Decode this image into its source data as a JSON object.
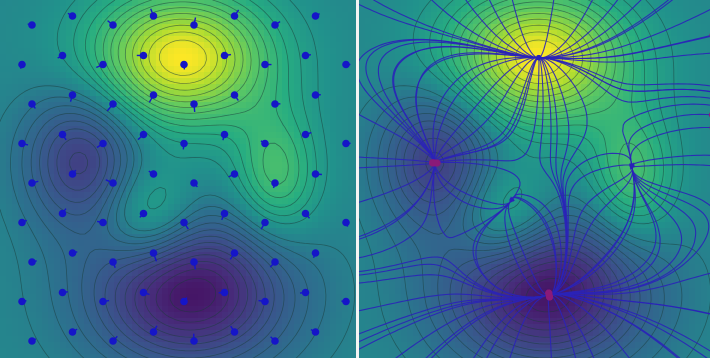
{
  "panels": [
    {
      "id": "left",
      "title": "",
      "view": "vector-field-samples"
    },
    {
      "id": "right",
      "title": "",
      "view": "streamlines-and-critical-points"
    }
  ],
  "caption": {
    "text": ""
  },
  "colors": {
    "background": "#2fae8c",
    "contour": "#1c3d3a",
    "marker_left": "#1515c8",
    "stream_right": "#2a22b8",
    "critical_point": "#8a1a78",
    "high": "#f6ee22",
    "low": "#3a1870"
  },
  "field": {
    "features": [
      {
        "name": "peak-top",
        "kind": "maximum"
      },
      {
        "name": "peak-right",
        "kind": "maximum"
      },
      {
        "name": "peak-center",
        "kind": "maximum"
      },
      {
        "name": "valley-left",
        "kind": "minimum"
      },
      {
        "name": "valley-bottom",
        "kind": "minimum"
      }
    ]
  }
}
